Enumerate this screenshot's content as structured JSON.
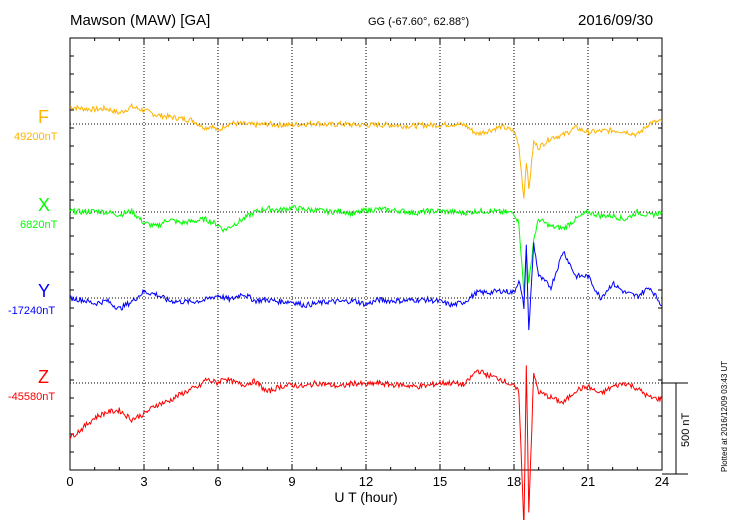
{
  "header": {
    "station": "Mawson (MAW)  [GA]",
    "coords": "GG (-67.60°,  62.88°)",
    "date": "2016/09/30"
  },
  "plotted_note": "Plotted at 2016/12/09 03:43 UT",
  "scale_bar_label": "500 nT",
  "chart_data": {
    "type": "line",
    "xlabel": "U T (hour)",
    "xlim": [
      0,
      24
    ],
    "x_ticks": [
      "0",
      "3",
      "6",
      "9",
      "12",
      "15",
      "18",
      "21",
      "24"
    ],
    "grid": "dotted",
    "scale_bar_nT": 500,
    "series": [
      {
        "name": "F",
        "baseline": "49200nT",
        "color": "#ffb400",
        "x": [
          0,
          0.5,
          1,
          1.5,
          2,
          2.5,
          3,
          3.5,
          4,
          4.5,
          5,
          5.25,
          5.5,
          5.75,
          6,
          6.25,
          6.5,
          7,
          7.5,
          8,
          8.5,
          9,
          9.5,
          10,
          10.5,
          11,
          11.5,
          12,
          12.5,
          13,
          13.5,
          14,
          14.5,
          15,
          15.5,
          16,
          16.5,
          17,
          17.5,
          18,
          18.2,
          18.4,
          18.5,
          18.6,
          18.8,
          19,
          19.5,
          20,
          20.5,
          21,
          21.5,
          22,
          22.5,
          23,
          23.5,
          24
        ],
        "values": [
          95,
          85,
          80,
          85,
          60,
          95,
          75,
          50,
          40,
          30,
          20,
          -5,
          -20,
          -10,
          -40,
          -10,
          5,
          0,
          -5,
          0,
          -5,
          -5,
          0,
          5,
          -5,
          0,
          -5,
          -5,
          -5,
          -5,
          -10,
          -10,
          -5,
          -5,
          0,
          -5,
          -55,
          -35,
          -15,
          -40,
          -120,
          -410,
          -200,
          -360,
          -100,
          -130,
          -75,
          -60,
          -20,
          -45,
          -40,
          -35,
          -40,
          -60,
          5,
          15
        ]
      },
      {
        "name": "X",
        "baseline": "6820nT",
        "color": "#00ff00",
        "x": [
          0,
          0.5,
          1,
          1.5,
          2,
          2.5,
          3,
          3.5,
          4,
          4.5,
          5,
          5.5,
          6,
          6.25,
          6.5,
          7,
          7.5,
          8,
          8.5,
          9,
          9.5,
          10,
          10.5,
          11,
          11.5,
          12,
          12.5,
          13,
          13.5,
          14,
          14.5,
          15,
          15.5,
          16,
          16.5,
          17,
          17.5,
          18,
          18.2,
          18.4,
          18.5,
          18.6,
          18.8,
          19,
          19.5,
          20,
          20.5,
          21,
          21.5,
          22,
          22.5,
          23,
          23.5,
          24
        ],
        "values": [
          5,
          0,
          5,
          0,
          -15,
          5,
          -60,
          -80,
          -40,
          -60,
          -50,
          -40,
          -70,
          -100,
          -80,
          -40,
          0,
          20,
          10,
          25,
          15,
          10,
          0,
          5,
          -10,
          10,
          15,
          10,
          5,
          -5,
          5,
          5,
          0,
          -5,
          5,
          5,
          0,
          -5,
          -60,
          -450,
          -200,
          -400,
          -150,
          -40,
          -80,
          -90,
          -40,
          0,
          -20,
          -20,
          -40,
          0,
          -20,
          0
        ]
      },
      {
        "name": "Y",
        "baseline": "-17240nT",
        "color": "#0000ff",
        "x": [
          0,
          0.5,
          1,
          1.5,
          2,
          2.5,
          3,
          3.5,
          4,
          4.5,
          5,
          5.5,
          6,
          6.5,
          7,
          7.5,
          8,
          8.5,
          9,
          9.5,
          10,
          10.5,
          11,
          11.5,
          12,
          12.5,
          13,
          13.5,
          14,
          14.5,
          15,
          15.5,
          16,
          16.5,
          17,
          17.5,
          18,
          18.2,
          18.4,
          18.5,
          18.6,
          18.8,
          19,
          19.5,
          20,
          20.5,
          21,
          21.5,
          22,
          22.5,
          23,
          23.5,
          24
        ],
        "values": [
          0,
          -10,
          -30,
          -15,
          -60,
          -20,
          35,
          20,
          -15,
          -20,
          -20,
          -10,
          15,
          -10,
          25,
          -15,
          -10,
          -20,
          -20,
          -40,
          -30,
          -20,
          -20,
          -15,
          -35,
          -10,
          -15,
          -15,
          -10,
          -10,
          -20,
          -40,
          -20,
          30,
          30,
          40,
          30,
          100,
          -50,
          280,
          -180,
          300,
          120,
          60,
          260,
          120,
          120,
          0,
          80,
          30,
          10,
          60,
          -40
        ]
      },
      {
        "name": "Z",
        "baseline": "-45580nT",
        "color": "#ff0000",
        "x": [
          0,
          0.5,
          1,
          1.5,
          2,
          2.5,
          3,
          3.5,
          4,
          4.5,
          5,
          5.25,
          5.5,
          5.75,
          6,
          6.25,
          6.5,
          7,
          7.5,
          8,
          8.5,
          9,
          9.5,
          10,
          10.5,
          11,
          11.5,
          12,
          12.5,
          13,
          13.5,
          14,
          14.5,
          15,
          15.5,
          16,
          16.5,
          17,
          17.5,
          18,
          18.2,
          18.4,
          18.5,
          18.6,
          18.8,
          19,
          19.5,
          20,
          20.5,
          21,
          21.5,
          22,
          22.5,
          23,
          23.5,
          24
        ],
        "values": [
          -300,
          -250,
          -190,
          -160,
          -150,
          -200,
          -170,
          -120,
          -100,
          -60,
          -30,
          -20,
          20,
          10,
          0,
          30,
          10,
          -10,
          10,
          -50,
          -20,
          -10,
          -20,
          0,
          -10,
          -20,
          0,
          -10,
          0,
          -10,
          -10,
          -20,
          -15,
          0,
          0,
          -10,
          70,
          40,
          20,
          -20,
          -50,
          -800,
          100,
          -700,
          50,
          -50,
          -80,
          -110,
          -40,
          -20,
          -60,
          -20,
          0,
          -30,
          -80,
          -90
        ]
      }
    ]
  }
}
